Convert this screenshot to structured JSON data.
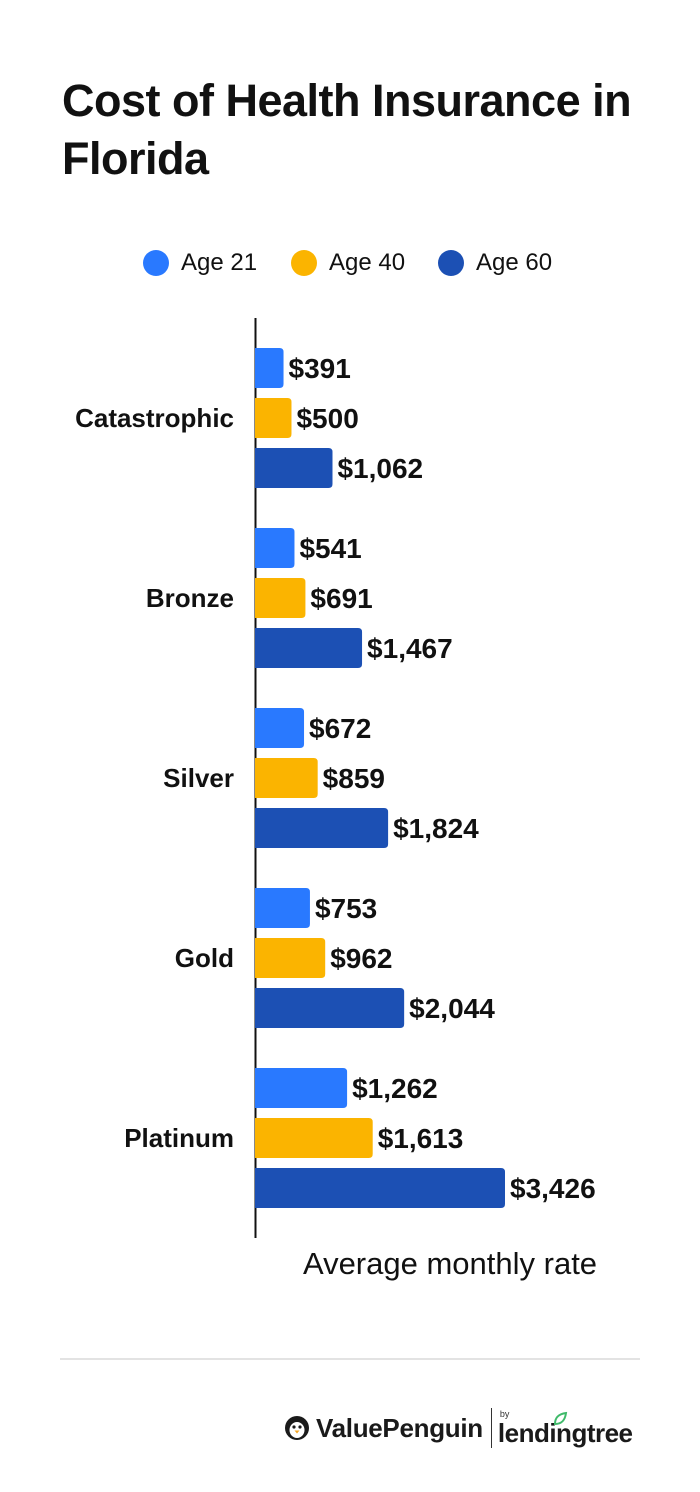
{
  "chart_data": {
    "type": "bar",
    "orientation": "horizontal",
    "title": "Cost of Health Insurance in Florida",
    "xlabel": "Average monthly rate",
    "ylabel": "",
    "categories": [
      "Catastrophic",
      "Bronze",
      "Silver",
      "Gold",
      "Platinum"
    ],
    "series": [
      {
        "name": "Age 21",
        "color": "#2979ff",
        "values": [
          391,
          541,
          672,
          753,
          1262
        ],
        "labels": [
          "$391",
          "$541",
          "$672",
          "$753",
          "$1,262"
        ]
      },
      {
        "name": "Age 40",
        "color": "#fbb400",
        "values": [
          500,
          691,
          859,
          962,
          1613
        ],
        "labels": [
          "$500",
          "$691",
          "$859",
          "$962",
          "$1,613"
        ]
      },
      {
        "name": "Age 60",
        "color": "#1c50b4",
        "values": [
          1062,
          1467,
          1824,
          2044,
          3426
        ],
        "labels": [
          "$1,062",
          "$1,467",
          "$1,824",
          "$2,044",
          "$3,426"
        ]
      }
    ],
    "xlim": [
      0,
      3426
    ],
    "grid": false,
    "legend_position": "top-center"
  },
  "footer": {
    "brand": "ValuePenguin",
    "partner_prefix": "by",
    "partner": "lendingtree",
    "penguin_icon": "penguin-icon",
    "leaf_icon": "leaf-icon",
    "partner_accent": "#3fba6a"
  }
}
